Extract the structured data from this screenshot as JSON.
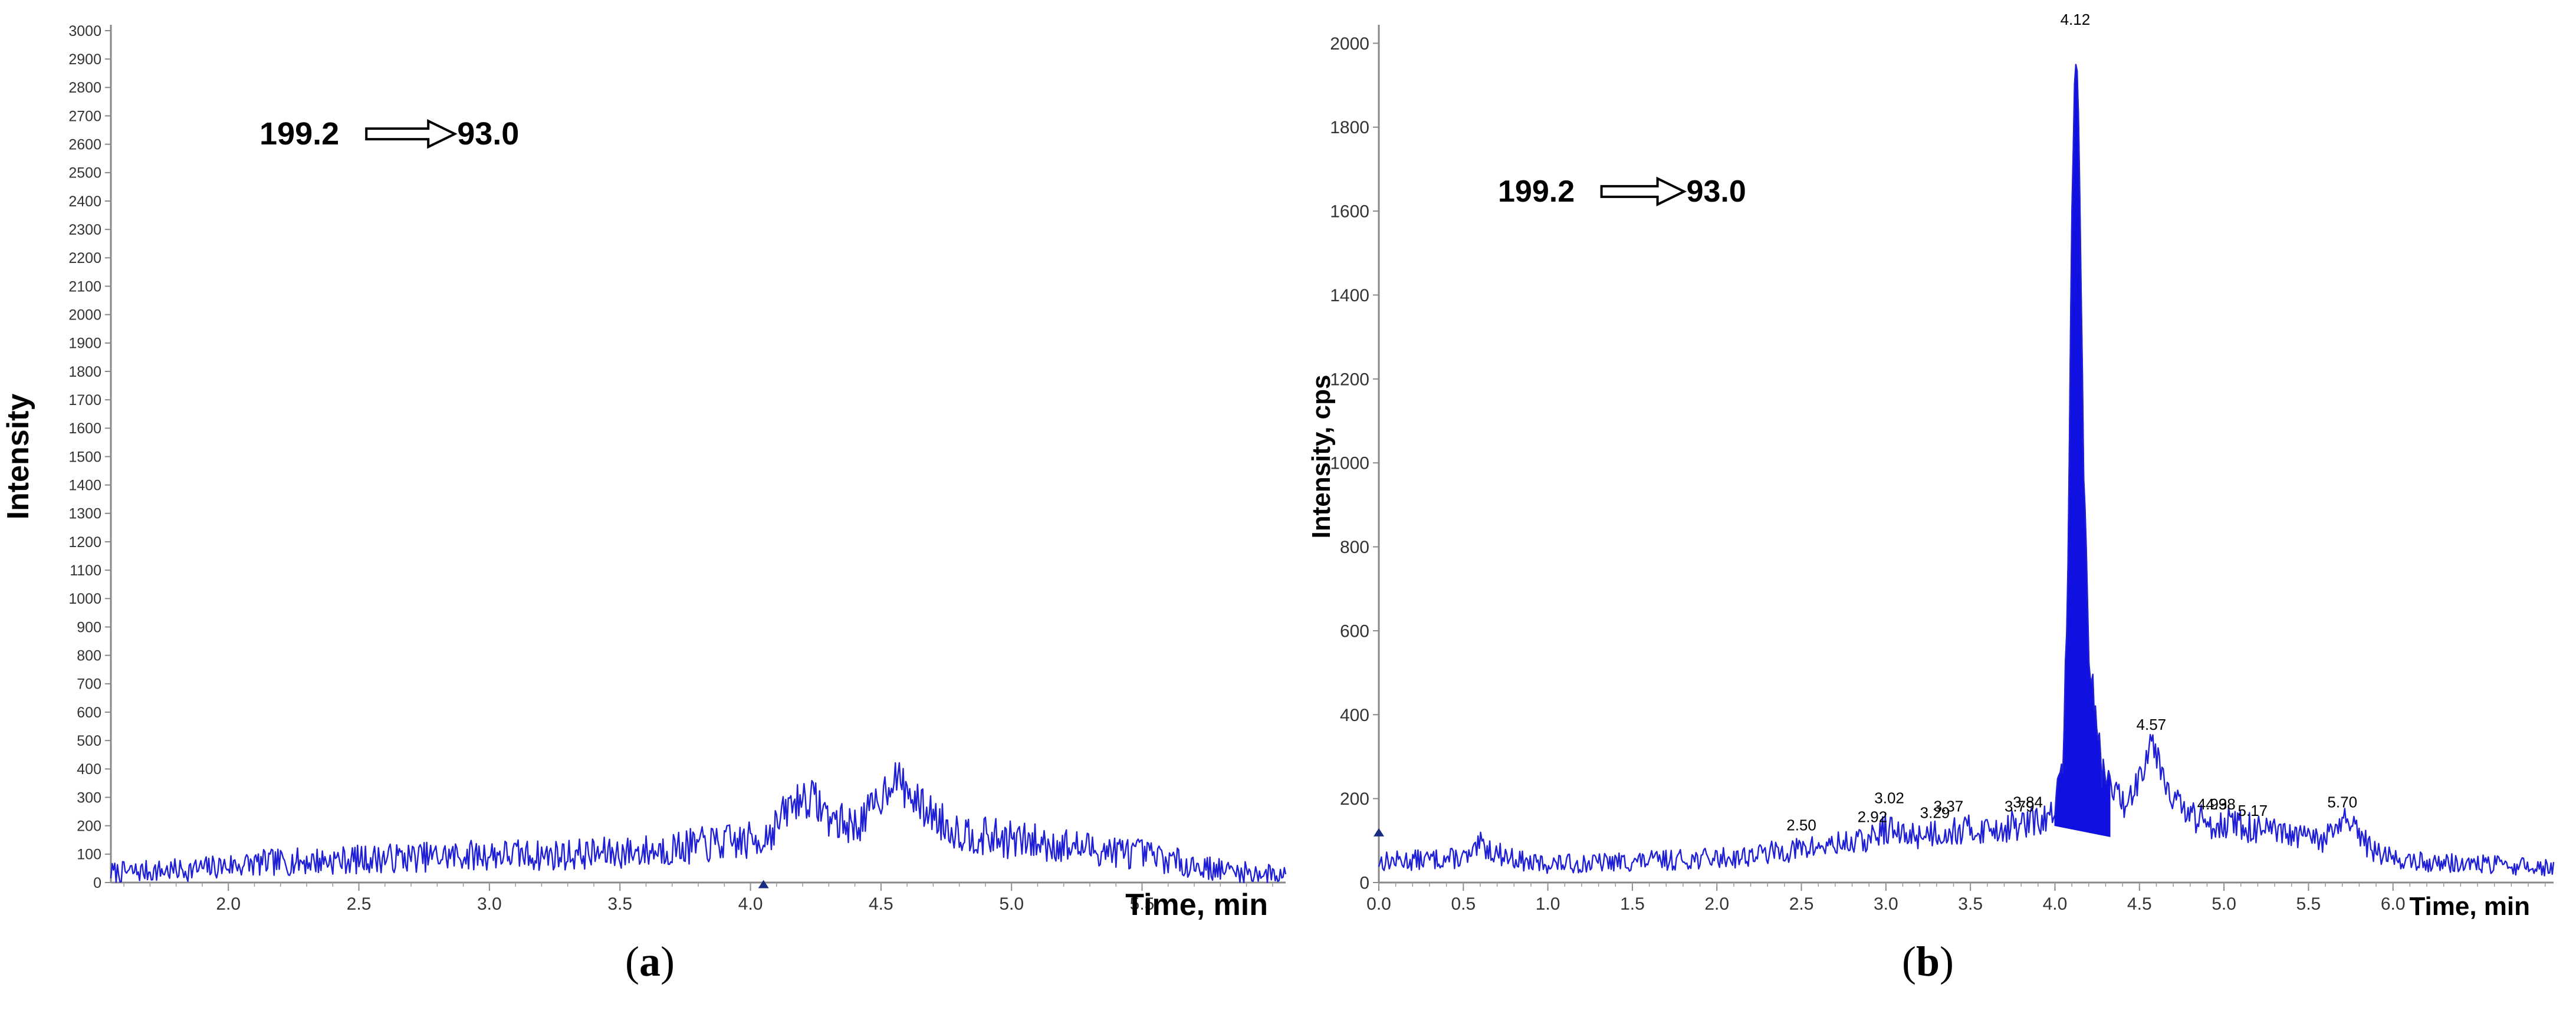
{
  "figure": {
    "panels": [
      {
        "paren_open": "(",
        "letter": "a",
        "paren_close": ")"
      },
      {
        "paren_open": "(",
        "letter": "b",
        "paren_close": ")"
      }
    ]
  },
  "chart_data": [
    {
      "type": "line",
      "title": "",
      "annotation": {
        "precursor": "199.2",
        "product": "93.0"
      },
      "xlabel": "Time, min",
      "ylabel": "Intensity",
      "xlim": [
        1.55,
        6.05
      ],
      "ylim": [
        0,
        3000
      ],
      "x_ticks": [
        "2.0",
        "2.5",
        "3.0",
        "3.5",
        "4.0",
        "4.5",
        "5.0",
        "5.5"
      ],
      "y_ticks": [
        "0",
        "100",
        "200",
        "300",
        "400",
        "500",
        "600",
        "700",
        "800",
        "900",
        "1000",
        "1100",
        "1200",
        "1300",
        "1400",
        "1500",
        "1600",
        "1700",
        "1800",
        "1900",
        "2000",
        "2100",
        "2200",
        "2300",
        "2400",
        "2500",
        "2600",
        "2700",
        "2800",
        "2900",
        "3000"
      ],
      "line_color": "#1f1fd6",
      "marker": {
        "x": 4.05,
        "y": -20
      },
      "series": [
        {
          "x": [
            1.55,
            1.7,
            1.85,
            2.0,
            2.15,
            2.3,
            2.45,
            2.6,
            2.75,
            2.9,
            3.05,
            3.2,
            3.35,
            3.5,
            3.6,
            3.7,
            3.8,
            3.9,
            4.0,
            4.05,
            4.1,
            4.15,
            4.2,
            4.25,
            4.3,
            4.35,
            4.4,
            4.45,
            4.5,
            4.55,
            4.6,
            4.65,
            4.7,
            4.75,
            4.8,
            4.9,
            5.0,
            5.1,
            5.2,
            5.3,
            5.4,
            5.5,
            5.6,
            5.7,
            5.8,
            5.9,
            6.0,
            6.05
          ],
          "y": [
            35,
            40,
            45,
            60,
            70,
            75,
            80,
            85,
            90,
            95,
            100,
            95,
            100,
            105,
            110,
            120,
            130,
            140,
            145,
            160,
            200,
            270,
            300,
            290,
            230,
            210,
            200,
            240,
            300,
            380,
            320,
            270,
            240,
            200,
            180,
            160,
            150,
            140,
            130,
            120,
            110,
            100,
            80,
            60,
            45,
            35,
            30,
            30
          ],
          "noise_amplitude": 70
        }
      ]
    },
    {
      "type": "line",
      "title": "",
      "annotation": {
        "precursor": "199.2",
        "product": "93.0"
      },
      "xlabel": "Time, min",
      "ylabel": "Intensity, cps",
      "xlim": [
        0,
        6.95
      ],
      "ylim": [
        0,
        2030
      ],
      "x_ticks": [
        "0.0",
        "0.5",
        "1.0",
        "1.5",
        "2.0",
        "2.5",
        "3.0",
        "3.5",
        "4.0",
        "4.5",
        "5.0",
        "5.5",
        "6.0"
      ],
      "y_ticks": [
        "0",
        "200",
        "400",
        "600",
        "800",
        "1000",
        "1200",
        "1400",
        "1600",
        "1800",
        "2000"
      ],
      "line_color": "#1f1fd6",
      "marker": {
        "x": 0.0,
        "y": 110
      },
      "filled_peak": {
        "start": 4.0,
        "end": 4.33
      },
      "peak_labels": [
        {
          "text": "2.50",
          "x": 2.5,
          "y": 110
        },
        {
          "text": "2.92",
          "x": 2.92,
          "y": 130
        },
        {
          "text": "3.02",
          "x": 3.02,
          "y": 175
        },
        {
          "text": "3.29",
          "x": 3.29,
          "y": 140
        },
        {
          "text": "3.37",
          "x": 3.37,
          "y": 155
        },
        {
          "text": "3.79",
          "x": 3.79,
          "y": 155
        },
        {
          "text": "3.84",
          "x": 3.84,
          "y": 165
        },
        {
          "text": "4.12",
          "x": 4.12,
          "y": 2030
        },
        {
          "text": "4.57",
          "x": 4.57,
          "y": 350
        },
        {
          "text": "4.93",
          "x": 4.93,
          "y": 160
        },
        {
          "text": "4.98",
          "x": 4.98,
          "y": 160
        },
        {
          "text": "5.17",
          "x": 5.17,
          "y": 145
        },
        {
          "text": "5.70",
          "x": 5.7,
          "y": 165
        }
      ],
      "series": [
        {
          "x": [
            0.0,
            0.3,
            0.55,
            0.6,
            0.7,
            0.9,
            1.2,
            1.5,
            1.8,
            2.1,
            2.3,
            2.5,
            2.7,
            2.9,
            3.0,
            3.1,
            3.3,
            3.5,
            3.7,
            3.84,
            3.95,
            4.0,
            4.05,
            4.08,
            4.1,
            4.12,
            4.14,
            4.17,
            4.2,
            4.24,
            4.28,
            4.33,
            4.4,
            4.5,
            4.57,
            4.65,
            4.75,
            4.9,
            5.0,
            5.2,
            5.4,
            5.6,
            5.7,
            5.8,
            5.9,
            6.1,
            6.4,
            6.7,
            6.95
          ],
          "y": [
            50,
            55,
            60,
            90,
            70,
            45,
            45,
            50,
            55,
            60,
            70,
            80,
            90,
            100,
            130,
            110,
            120,
            125,
            130,
            140,
            150,
            170,
            300,
            800,
            1600,
            2030,
            1800,
            1000,
            550,
            400,
            260,
            240,
            180,
            250,
            350,
            250,
            170,
            140,
            145,
            125,
            110,
            100,
            150,
            110,
            70,
            50,
            45,
            40,
            35
          ],
          "noise_amplitude": 40
        }
      ]
    }
  ]
}
